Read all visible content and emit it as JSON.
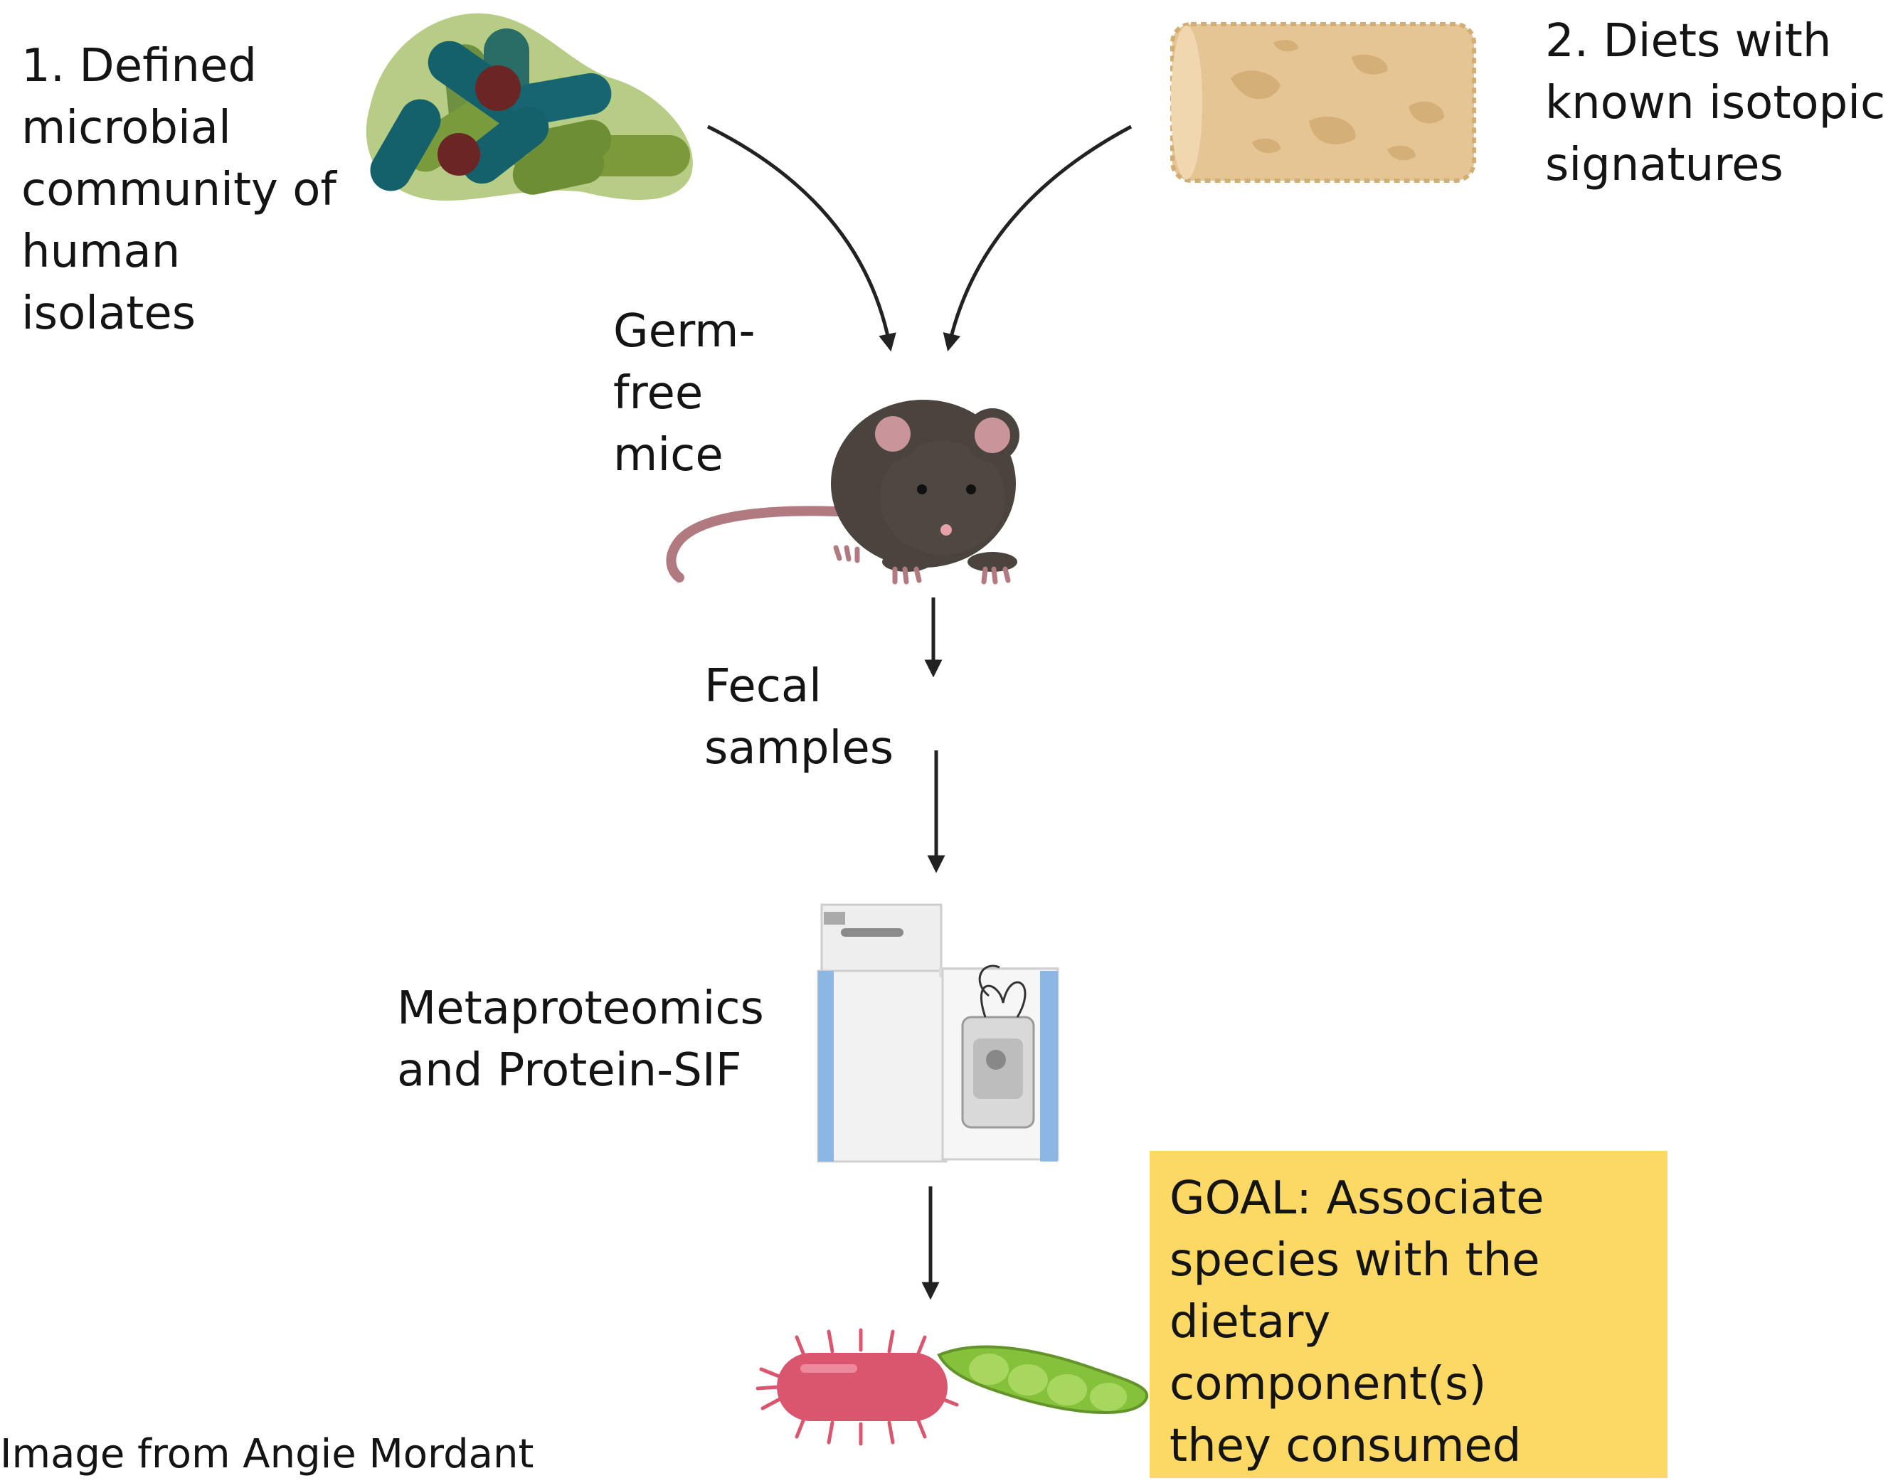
{
  "labels": {
    "community": "1. Defined\nmicrobial\ncommunity of\nhuman\nisolates",
    "diets": "2. Diets with\nknown isotopic\nsignatures",
    "mice": "Germ-\nfree\nmice",
    "fecal": "Fecal\nsamples",
    "metaproteomics": "Metaproteomics\nand Protein-SIF",
    "goal": "GOAL: Associate\nspecies with the\ndietary\ncomponent(s)\nthey consumed",
    "credit": "Image from Angie Mordant"
  },
  "icons": {
    "microbes": "bacteria-cluster-icon",
    "diet": "food-pellet-icon",
    "mouse": "mouse-icon",
    "instrument": "mass-spectrometer-icon",
    "bacterium": "bacterium-icon",
    "bean": "bean-pod-icon"
  },
  "colors": {
    "goal_box": "#fcd865",
    "arrows": "#222222",
    "bacteria_teal": "#145f6a",
    "bacteria_olive": "#6b8a34",
    "pellet": "#e6c595",
    "mouse": "#4b433d",
    "bacterium": "#d9566e",
    "bean": "#86c13c"
  }
}
